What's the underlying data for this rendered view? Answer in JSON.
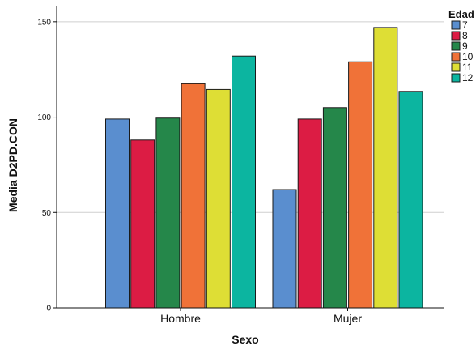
{
  "chart_data": {
    "type": "bar",
    "xlabel": "Sexo",
    "ylabel": "Media D2PD.CON",
    "categories": [
      "Hombre",
      "Mujer"
    ],
    "ylim": [
      0,
      158
    ],
    "yticks": [
      0,
      50,
      100,
      150
    ],
    "grid": true,
    "legend": {
      "title": "Edad",
      "position": "top-right"
    },
    "series": [
      {
        "name": "7",
        "color": "#5a8ecf",
        "values": [
          99,
          62
        ]
      },
      {
        "name": "8",
        "color": "#dc1c44",
        "values": [
          88,
          99
        ]
      },
      {
        "name": "9",
        "color": "#25874a",
        "values": [
          99.5,
          105
        ]
      },
      {
        "name": "10",
        "color": "#f07238",
        "values": [
          117.5,
          129
        ]
      },
      {
        "name": "11",
        "color": "#dede35",
        "values": [
          114.5,
          147
        ]
      },
      {
        "name": "12",
        "color": "#0cb5a0",
        "values": [
          132,
          113.5
        ]
      }
    ]
  }
}
